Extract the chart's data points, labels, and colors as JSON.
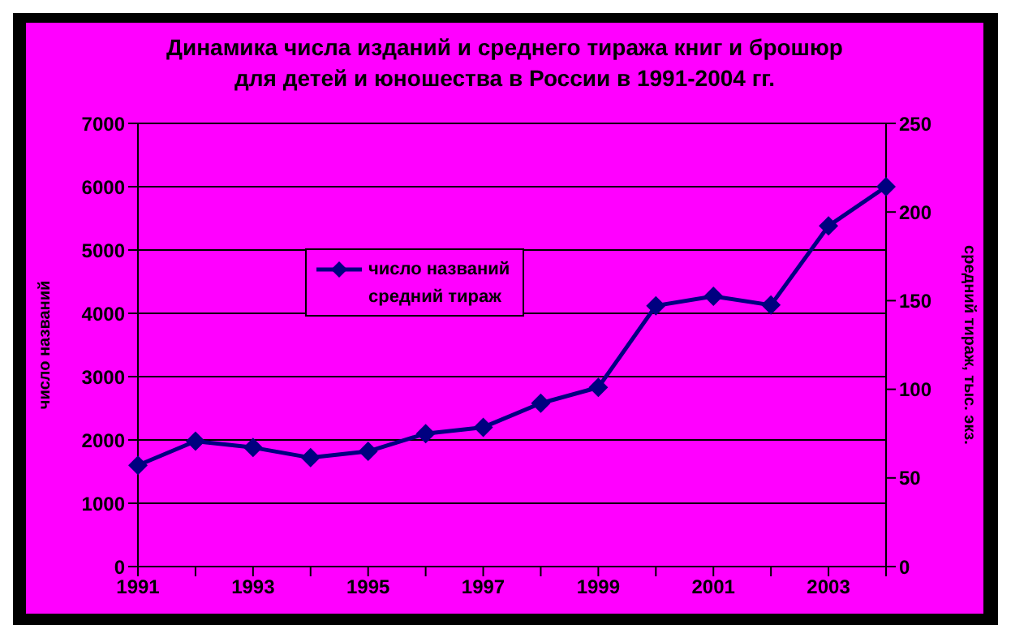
{
  "chart_data": {
    "type": "line",
    "title": "Динамика числа изданий и среднего тиража книг и брошюр\nдля детей и юношества в России в 1991-2004 гг.",
    "ylabel": "число названий",
    "y2label": "средний тираж, тыс. экз.",
    "categories": [
      "1991",
      null,
      "1993",
      null,
      "1995",
      null,
      "1997",
      null,
      "1999",
      null,
      "2001",
      null,
      "2003",
      null
    ],
    "series": [
      {
        "name": "число названий",
        "color": "#000080",
        "values": [
          1600,
          1980,
          1880,
          1720,
          1820,
          2100,
          2200,
          2580,
          2830,
          4120,
          4270,
          4130,
          5380,
          6000
        ]
      },
      {
        "name": "средний тираж",
        "values": [
          null,
          null,
          null,
          null,
          null,
          null,
          null,
          null,
          null,
          null,
          null,
          null,
          null,
          null
        ]
      }
    ],
    "ylim": [
      0,
      7000
    ],
    "yticks": [
      0,
      1000,
      2000,
      3000,
      4000,
      5000,
      6000,
      7000
    ],
    "y2lim": [
      0,
      250
    ],
    "y2ticks": [
      0,
      50,
      100,
      150,
      200,
      250
    ],
    "grid": "y",
    "legend": "top left",
    "marker": "diamond",
    "line_style": "solid"
  }
}
